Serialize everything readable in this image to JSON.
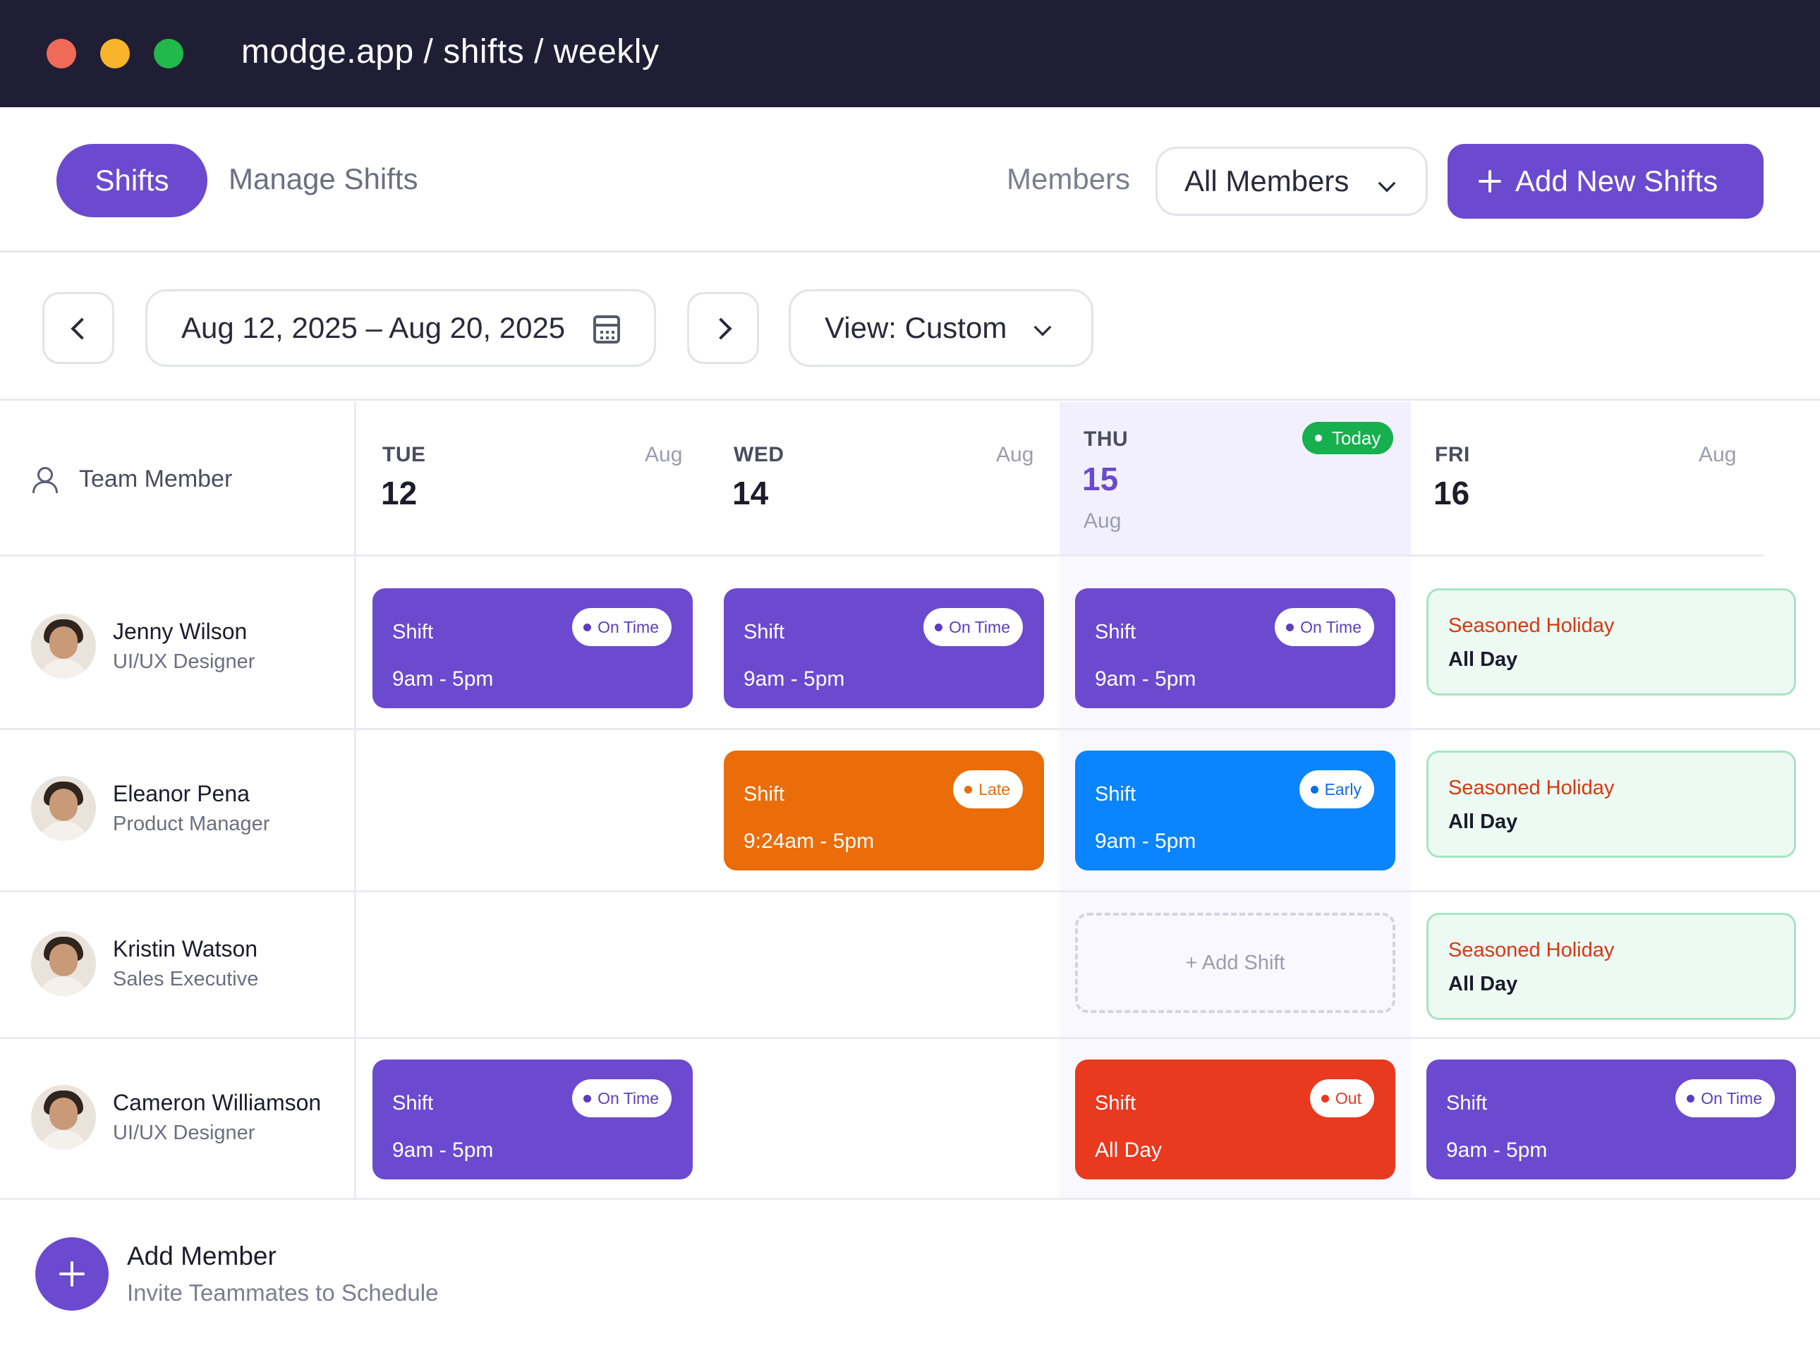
{
  "window": {
    "url": "modge.app / shifts / weekly"
  },
  "nav": {
    "tab_active": "Shifts",
    "tab_manage": "Manage Shifts",
    "members_label": "Members",
    "members_select": "All Members",
    "add_button": "Add New Shifts"
  },
  "toolbar": {
    "date_range": "Aug 12, 2025 – Aug 20, 2025",
    "view": "View: Custom"
  },
  "grid": {
    "team_member_header": "Team Member",
    "today_badge": "Today",
    "days": [
      {
        "name": "TUE",
        "num": "12",
        "month": "Aug"
      },
      {
        "name": "WED",
        "num": "14",
        "month": "Aug"
      },
      {
        "name": "THU",
        "num": "15",
        "month": "Aug"
      },
      {
        "name": "FRI",
        "num": "16",
        "month": "Aug"
      }
    ],
    "members": [
      {
        "name": "Jenny Wilson",
        "role": "UI/UX Designer"
      },
      {
        "name": "Eleanor Pena",
        "role": "Product Manager"
      },
      {
        "name": "Kristin Watson",
        "role": "Sales Executive"
      },
      {
        "name": "Cameron Williamson",
        "role": "UI/UX Designer"
      }
    ],
    "shift_label": "Shift",
    "shifts": {
      "r0_tue": {
        "time": "9am - 5pm",
        "status": "On Time"
      },
      "r0_wed": {
        "time": "9am - 5pm",
        "status": "On Time"
      },
      "r0_thu": {
        "time": "9am - 5pm",
        "status": "On Time"
      },
      "r1_wed": {
        "time": "9:24am - 5pm",
        "status": "Late"
      },
      "r1_thu": {
        "time": "9am - 5pm",
        "status": "Early"
      },
      "r3_tue": {
        "time": "9am - 5pm",
        "status": "On Time"
      },
      "r3_thu": {
        "time": "All Day",
        "status": "Out"
      },
      "r3_fri": {
        "time": "9am - 5pm",
        "status": "On Time"
      }
    },
    "holiday": {
      "title": "Seasoned Holiday",
      "subtitle": "All Day"
    },
    "add_shift": "+ Add Shift"
  },
  "footer": {
    "add_member_title": "Add Member",
    "add_member_sub": "Invite Teammates to Schedule"
  },
  "colors": {
    "accent": "#6b4ad0",
    "late": "#ea6d09",
    "early": "#0a84ff",
    "out": "#e9391f",
    "today_badge": "#16b04e",
    "holiday_bg": "#ecfaf3"
  }
}
